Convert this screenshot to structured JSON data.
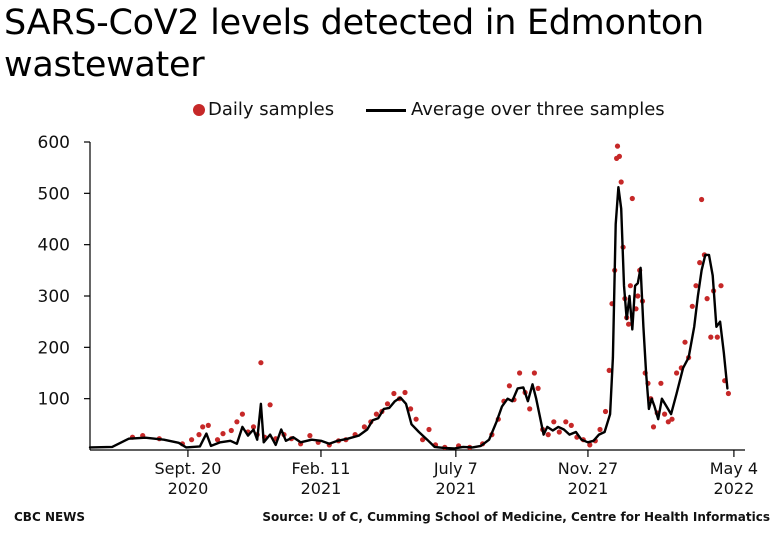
{
  "title": "SARS-CoV2 levels detected in Edmonton wastewater",
  "legend": {
    "daily": "Daily samples",
    "average": "Average over three samples"
  },
  "footer": {
    "left": "CBC NEWS",
    "right": "Source: U of C, Cumming School of Medicine, Centre for Health Informatics"
  },
  "colors": {
    "points": "#c62828",
    "line": "#000000",
    "axis": "#000000",
    "background": "#ffffff"
  },
  "chart_data": {
    "type": "scatter",
    "title": "SARS-CoV2 levels detected in Edmonton wastewater",
    "xlabel": "",
    "ylabel": "",
    "ylim": [
      0,
      600
    ],
    "xlim": [
      "2020-06-06",
      "2022-05-16"
    ],
    "grid": false,
    "legend_position": "top-center",
    "y_ticks": [
      100,
      200,
      300,
      400,
      500,
      600
    ],
    "x_ticks": [
      {
        "date": "2020-09-20",
        "label": [
          "Sept. 20",
          "2020"
        ]
      },
      {
        "date": "2021-02-11",
        "label": [
          "Feb. 11",
          "2021"
        ]
      },
      {
        "date": "2021-07-07",
        "label": [
          "July 7",
          "2021"
        ]
      },
      {
        "date": "2021-11-27",
        "label": [
          "Nov. 27",
          "2021"
        ]
      },
      {
        "date": "2022-05-04",
        "label": [
          "May 4",
          "2022"
        ]
      }
    ],
    "series": [
      {
        "name": "Average over three samples",
        "kind": "line",
        "points": [
          [
            "2020-06-06",
            5
          ],
          [
            "2020-06-30",
            6
          ],
          [
            "2020-07-18",
            22
          ],
          [
            "2020-08-05",
            24
          ],
          [
            "2020-08-25",
            20
          ],
          [
            "2020-09-10",
            14
          ],
          [
            "2020-09-18",
            5
          ],
          [
            "2020-10-03",
            7
          ],
          [
            "2020-10-10",
            32
          ],
          [
            "2020-10-15",
            8
          ],
          [
            "2020-10-25",
            15
          ],
          [
            "2020-11-05",
            18
          ],
          [
            "2020-11-12",
            12
          ],
          [
            "2020-11-18",
            45
          ],
          [
            "2020-11-24",
            28
          ],
          [
            "2020-11-30",
            40
          ],
          [
            "2020-12-04",
            20
          ],
          [
            "2020-12-08",
            90
          ],
          [
            "2020-12-11",
            15
          ],
          [
            "2020-12-18",
            30
          ],
          [
            "2020-12-24",
            10
          ],
          [
            "2020-12-30",
            40
          ],
          [
            "2021-01-04",
            18
          ],
          [
            "2021-01-12",
            25
          ],
          [
            "2021-01-20",
            15
          ],
          [
            "2021-02-01",
            20
          ],
          [
            "2021-02-11",
            18
          ],
          [
            "2021-02-20",
            12
          ],
          [
            "2021-03-01",
            18
          ],
          [
            "2021-03-12",
            22
          ],
          [
            "2021-03-24",
            28
          ],
          [
            "2021-04-02",
            40
          ],
          [
            "2021-04-08",
            58
          ],
          [
            "2021-04-14",
            62
          ],
          [
            "2021-04-20",
            80
          ],
          [
            "2021-04-26",
            82
          ],
          [
            "2021-05-02",
            95
          ],
          [
            "2021-05-08",
            102
          ],
          [
            "2021-05-14",
            90
          ],
          [
            "2021-05-20",
            50
          ],
          [
            "2021-05-28",
            35
          ],
          [
            "2021-06-06",
            20
          ],
          [
            "2021-06-14",
            6
          ],
          [
            "2021-06-24",
            4
          ],
          [
            "2021-07-05",
            3
          ],
          [
            "2021-07-15",
            6
          ],
          [
            "2021-07-25",
            5
          ],
          [
            "2021-08-03",
            8
          ],
          [
            "2021-08-12",
            20
          ],
          [
            "2021-08-20",
            55
          ],
          [
            "2021-08-26",
            85
          ],
          [
            "2021-09-01",
            100
          ],
          [
            "2021-09-06",
            95
          ],
          [
            "2021-09-12",
            120
          ],
          [
            "2021-09-18",
            122
          ],
          [
            "2021-09-23",
            95
          ],
          [
            "2021-09-28",
            128
          ],
          [
            "2021-10-02",
            100
          ],
          [
            "2021-10-06",
            65
          ],
          [
            "2021-10-10",
            30
          ],
          [
            "2021-10-14",
            45
          ],
          [
            "2021-10-20",
            38
          ],
          [
            "2021-10-26",
            45
          ],
          [
            "2021-11-01",
            40
          ],
          [
            "2021-11-07",
            30
          ],
          [
            "2021-11-14",
            35
          ],
          [
            "2021-11-20",
            20
          ],
          [
            "2021-11-27",
            15
          ],
          [
            "2021-12-03",
            18
          ],
          [
            "2021-12-09",
            30
          ],
          [
            "2021-12-15",
            35
          ],
          [
            "2021-12-21",
            70
          ],
          [
            "2021-12-24",
            180
          ],
          [
            "2021-12-27",
            440
          ],
          [
            "2021-12-30",
            512
          ],
          [
            "2022-01-02",
            470
          ],
          [
            "2022-01-05",
            320
          ],
          [
            "2022-01-08",
            255
          ],
          [
            "2022-01-11",
            300
          ],
          [
            "2022-01-14",
            235
          ],
          [
            "2022-01-17",
            320
          ],
          [
            "2022-01-20",
            325
          ],
          [
            "2022-01-23",
            355
          ],
          [
            "2022-01-26",
            240
          ],
          [
            "2022-01-29",
            150
          ],
          [
            "2022-02-01",
            80
          ],
          [
            "2022-02-04",
            100
          ],
          [
            "2022-02-07",
            85
          ],
          [
            "2022-02-11",
            60
          ],
          [
            "2022-02-15",
            100
          ],
          [
            "2022-02-20",
            85
          ],
          [
            "2022-02-25",
            70
          ],
          [
            "2022-03-03",
            110
          ],
          [
            "2022-03-10",
            160
          ],
          [
            "2022-03-16",
            180
          ],
          [
            "2022-03-22",
            240
          ],
          [
            "2022-03-26",
            300
          ],
          [
            "2022-03-30",
            350
          ],
          [
            "2022-04-03",
            380
          ],
          [
            "2022-04-07",
            380
          ],
          [
            "2022-04-11",
            340
          ],
          [
            "2022-04-15",
            240
          ],
          [
            "2022-04-19",
            250
          ],
          [
            "2022-04-23",
            190
          ],
          [
            "2022-04-27",
            120
          ]
        ]
      },
      {
        "name": "Daily samples",
        "kind": "scatter",
        "points": [
          [
            "2020-07-22",
            25
          ],
          [
            "2020-08-02",
            28
          ],
          [
            "2020-08-20",
            22
          ],
          [
            "2020-09-14",
            12
          ],
          [
            "2020-09-24",
            20
          ],
          [
            "2020-10-02",
            30
          ],
          [
            "2020-10-06",
            45
          ],
          [
            "2020-10-12",
            48
          ],
          [
            "2020-10-22",
            20
          ],
          [
            "2020-10-28",
            32
          ],
          [
            "2020-11-06",
            38
          ],
          [
            "2020-11-12",
            55
          ],
          [
            "2020-11-18",
            70
          ],
          [
            "2020-11-24",
            35
          ],
          [
            "2020-11-30",
            45
          ],
          [
            "2020-12-04",
            30
          ],
          [
            "2020-12-08",
            170
          ],
          [
            "2020-12-12",
            25
          ],
          [
            "2020-12-18",
            88
          ],
          [
            "2020-12-24",
            22
          ],
          [
            "2021-01-02",
            30
          ],
          [
            "2021-01-10",
            22
          ],
          [
            "2021-01-20",
            12
          ],
          [
            "2021-01-30",
            28
          ],
          [
            "2021-02-08",
            15
          ],
          [
            "2021-02-20",
            10
          ],
          [
            "2021-03-02",
            18
          ],
          [
            "2021-03-10",
            20
          ],
          [
            "2021-03-20",
            30
          ],
          [
            "2021-03-30",
            45
          ],
          [
            "2021-04-06",
            55
          ],
          [
            "2021-04-12",
            70
          ],
          [
            "2021-04-18",
            75
          ],
          [
            "2021-04-24",
            90
          ],
          [
            "2021-05-01",
            110
          ],
          [
            "2021-05-07",
            100
          ],
          [
            "2021-05-13",
            112
          ],
          [
            "2021-05-19",
            80
          ],
          [
            "2021-05-25",
            60
          ],
          [
            "2021-06-01",
            20
          ],
          [
            "2021-06-08",
            40
          ],
          [
            "2021-06-15",
            10
          ],
          [
            "2021-06-25",
            5
          ],
          [
            "2021-07-10",
            8
          ],
          [
            "2021-07-22",
            5
          ],
          [
            "2021-08-05",
            12
          ],
          [
            "2021-08-15",
            30
          ],
          [
            "2021-08-22",
            60
          ],
          [
            "2021-08-28",
            95
          ],
          [
            "2021-09-03",
            125
          ],
          [
            "2021-09-08",
            98
          ],
          [
            "2021-09-14",
            150
          ],
          [
            "2021-09-20",
            112
          ],
          [
            "2021-09-25",
            80
          ],
          [
            "2021-09-30",
            150
          ],
          [
            "2021-10-04",
            120
          ],
          [
            "2021-10-09",
            40
          ],
          [
            "2021-10-15",
            30
          ],
          [
            "2021-10-21",
            55
          ],
          [
            "2021-10-27",
            35
          ],
          [
            "2021-11-03",
            55
          ],
          [
            "2021-11-09",
            48
          ],
          [
            "2021-11-15",
            25
          ],
          [
            "2021-11-22",
            20
          ],
          [
            "2021-11-29",
            10
          ],
          [
            "2021-12-05",
            18
          ],
          [
            "2021-12-10",
            40
          ],
          [
            "2021-12-16",
            75
          ],
          [
            "2021-12-20",
            155
          ],
          [
            "2021-12-23",
            285
          ],
          [
            "2021-12-26",
            350
          ],
          [
            "2021-12-28",
            568
          ],
          [
            "2021-12-29",
            592
          ],
          [
            "2021-12-31",
            572
          ],
          [
            "2022-01-02",
            522
          ],
          [
            "2022-01-04",
            395
          ],
          [
            "2022-01-06",
            295
          ],
          [
            "2022-01-08",
            258
          ],
          [
            "2022-01-10",
            245
          ],
          [
            "2022-01-12",
            320
          ],
          [
            "2022-01-14",
            490
          ],
          [
            "2022-01-18",
            275
          ],
          [
            "2022-01-20",
            300
          ],
          [
            "2022-01-22",
            350
          ],
          [
            "2022-01-25",
            290
          ],
          [
            "2022-01-28",
            150
          ],
          [
            "2022-01-31",
            130
          ],
          [
            "2022-02-03",
            100
          ],
          [
            "2022-02-06",
            45
          ],
          [
            "2022-02-10",
            72
          ],
          [
            "2022-02-14",
            130
          ],
          [
            "2022-02-18",
            70
          ],
          [
            "2022-02-22",
            55
          ],
          [
            "2022-02-26",
            60
          ],
          [
            "2022-03-03",
            150
          ],
          [
            "2022-03-08",
            160
          ],
          [
            "2022-03-12",
            210
          ],
          [
            "2022-03-16",
            180
          ],
          [
            "2022-03-20",
            280
          ],
          [
            "2022-03-24",
            320
          ],
          [
            "2022-03-28",
            365
          ],
          [
            "2022-03-30",
            488
          ],
          [
            "2022-04-02",
            380
          ],
          [
            "2022-04-05",
            295
          ],
          [
            "2022-04-09",
            220
          ],
          [
            "2022-04-12",
            310
          ],
          [
            "2022-04-16",
            220
          ],
          [
            "2022-04-20",
            320
          ],
          [
            "2022-04-24",
            135
          ],
          [
            "2022-04-28",
            110
          ]
        ]
      }
    ]
  }
}
